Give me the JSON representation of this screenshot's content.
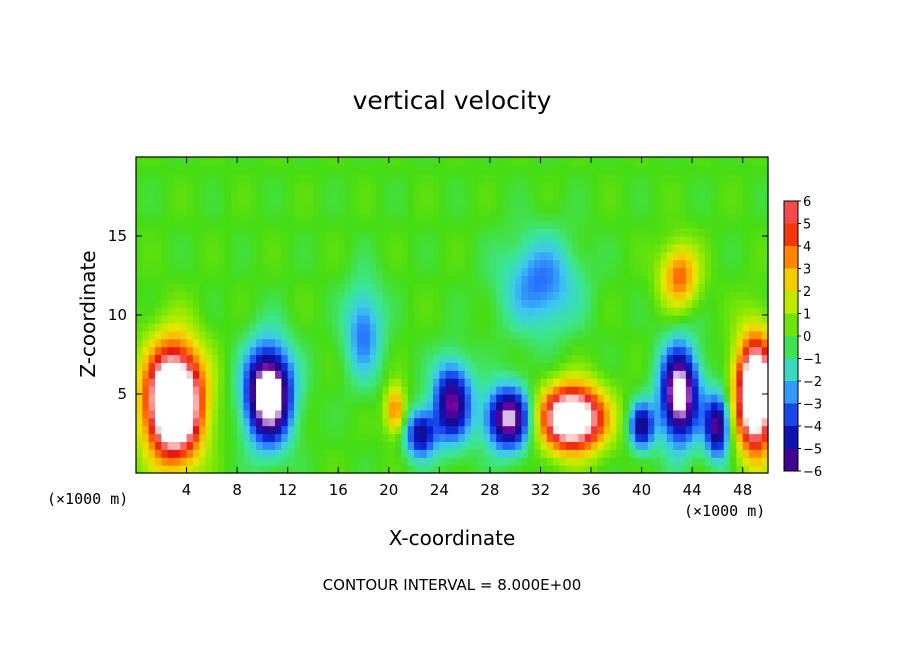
{
  "chart_data": {
    "type": "heatmap",
    "title": "vertical velocity",
    "xlabel": "X-coordinate",
    "ylabel": "Z-coordinate",
    "x_unit_label": "(×1000 m)",
    "y_unit_label": "(×1000 m)",
    "xlim": [
      0,
      50
    ],
    "ylim": [
      0,
      20
    ],
    "x_ticks": [
      "4",
      "8",
      "12",
      "16",
      "20",
      "24",
      "28",
      "32",
      "36",
      "40",
      "44",
      "48"
    ],
    "x_tick_values": [
      4,
      8,
      12,
      16,
      20,
      24,
      28,
      32,
      36,
      40,
      44,
      48
    ],
    "y_ticks": [
      "5",
      "10",
      "15"
    ],
    "y_tick_values": [
      5,
      10,
      15
    ],
    "colorbar": {
      "labels": [
        "6",
        "5",
        "4",
        "3",
        "2",
        "1",
        "0",
        "−1",
        "−2",
        "−3",
        "−4",
        "−5",
        "−6"
      ],
      "values": [
        6,
        5,
        4,
        3,
        2,
        1,
        0,
        -1,
        -2,
        -3,
        -4,
        -5,
        -6
      ]
    },
    "features": [
      {
        "x": 3,
        "z": 4.5,
        "w": 12,
        "sx": 2.2,
        "sz": 3.5
      },
      {
        "x": 10.5,
        "z": 5,
        "w": -9,
        "sx": 1.8,
        "sz": 3
      },
      {
        "x": 34.5,
        "z": 3.5,
        "w": 10,
        "sx": 2.5,
        "sz": 2
      },
      {
        "x": 49,
        "z": 5,
        "w": 11,
        "sx": 1.5,
        "sz": 3.5
      },
      {
        "x": 43,
        "z": 5,
        "w": -8,
        "sx": 1.5,
        "sz": 3
      },
      {
        "x": 43,
        "z": 12.5,
        "w": 4,
        "sx": 1.5,
        "sz": 2
      },
      {
        "x": 29.5,
        "z": 3.5,
        "w": -7,
        "sx": 1.8,
        "sz": 2
      },
      {
        "x": 25,
        "z": 4.5,
        "w": -6,
        "sx": 1.5,
        "sz": 2.5
      },
      {
        "x": 22.5,
        "z": 2.5,
        "w": -5,
        "sx": 1.2,
        "sz": 1.5
      },
      {
        "x": 20.5,
        "z": 4,
        "w": 4,
        "sx": 0.8,
        "sz": 1.5
      },
      {
        "x": 40,
        "z": 3,
        "w": -5,
        "sx": 1,
        "sz": 1.5
      },
      {
        "x": 46,
        "z": 3,
        "w": -6,
        "sx": 1,
        "sz": 2
      },
      {
        "x": 32,
        "z": 12,
        "w": -3,
        "sx": 3,
        "sz": 3
      },
      {
        "x": 18,
        "z": 9,
        "w": -3,
        "sx": 1.5,
        "sz": 3
      }
    ]
  },
  "contour_note": "CONTOUR INTERVAL = 8.000E+00"
}
